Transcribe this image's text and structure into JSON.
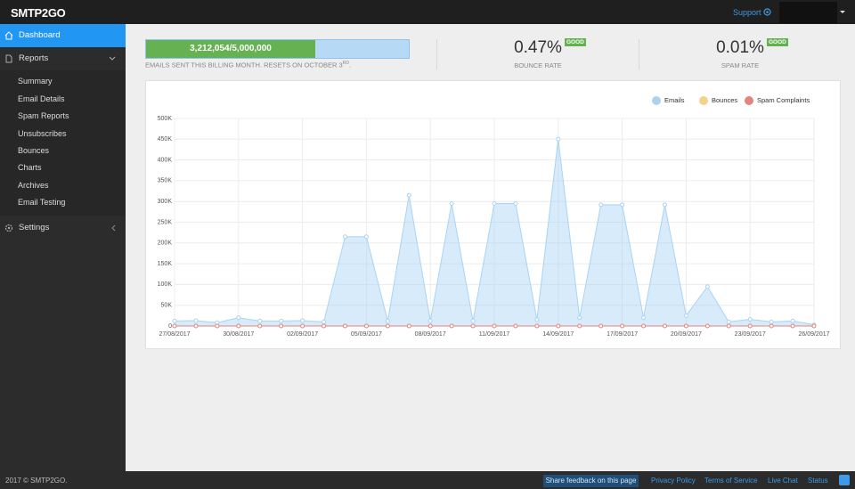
{
  "header": {
    "logo": "SMTP2GO",
    "support": "Support"
  },
  "sidebar": {
    "dashboard": "Dashboard",
    "reports": "Reports",
    "submenu": [
      "Summary",
      "Email Details",
      "Spam Reports",
      "Unsubscribes",
      "Bounces",
      "Charts",
      "Archives",
      "Email Testing"
    ],
    "settings": "Settings"
  },
  "usage": {
    "sent": 3212054,
    "limit": 5000000,
    "label": "3,212,054/5,000,000",
    "note": "EMAILS SENT THIS BILLING MONTH. RESETS ON OCTOBER 3",
    "note_sup": "RD",
    "note_end": "."
  },
  "stats": [
    {
      "value": "0.47%",
      "badge": "GOOD",
      "label": "BOUNCE RATE"
    },
    {
      "value": "0.01%",
      "badge": "GOOD",
      "label": "SPAM RATE"
    }
  ],
  "chart_data": {
    "type": "area",
    "categories": [
      "27/08/2017",
      null,
      null,
      "30/08/2017",
      null,
      null,
      "02/09/2017",
      null,
      null,
      "05/09/2017",
      null,
      null,
      "08/09/2017",
      null,
      null,
      "11/09/2017",
      null,
      null,
      "14/09/2017",
      null,
      null,
      "17/09/2017",
      null,
      null,
      "20/09/2017",
      null,
      null,
      "23/09/2017",
      null,
      null,
      "26/09/2017"
    ],
    "series": [
      {
        "name": "Emails",
        "color": "#a9d3f5",
        "values": [
          12000,
          13000,
          8000,
          20000,
          12000,
          12000,
          13000,
          10000,
          215000,
          215000,
          12000,
          315000,
          12000,
          295000,
          12000,
          295000,
          295000,
          15000,
          450000,
          20000,
          292000,
          292000,
          20000,
          292000,
          25000,
          95000,
          10000,
          16000,
          10000,
          12000,
          3000
        ]
      },
      {
        "name": "Bounces",
        "color": "#f3d38b",
        "values": [
          0,
          0,
          0,
          0,
          0,
          0,
          0,
          0,
          0,
          0,
          0,
          0,
          0,
          0,
          0,
          0,
          0,
          0,
          0,
          0,
          0,
          0,
          0,
          0,
          0,
          0,
          0,
          0,
          0,
          0,
          0
        ]
      },
      {
        "name": "Spam Complaints",
        "color": "#e5837d",
        "values": [
          0,
          0,
          0,
          0,
          0,
          0,
          0,
          0,
          0,
          0,
          0,
          0,
          0,
          0,
          0,
          0,
          0,
          0,
          0,
          0,
          0,
          0,
          0,
          0,
          0,
          0,
          0,
          0,
          0,
          0,
          0
        ]
      }
    ],
    "ylim": [
      0,
      500000
    ],
    "yticks": [
      0,
      {
        "value": 50000,
        "label": "50K"
      },
      {
        "value": 100000,
        "label": "100K"
      },
      {
        "value": 150000,
        "label": "150K"
      },
      {
        "value": 200000,
        "label": "200K"
      },
      {
        "value": 250000,
        "label": "250K"
      },
      {
        "value": 300000,
        "label": "300K"
      },
      {
        "value": 350000,
        "label": "350K"
      },
      {
        "value": 400000,
        "label": "400K"
      },
      {
        "value": 450000,
        "label": "450K"
      },
      {
        "value": 500000,
        "label": "500K"
      }
    ],
    "grid": true,
    "legend": "top-right"
  },
  "footer": {
    "copyright": "2017 © SMTP2GO.",
    "feedback": "Share feedback on this page",
    "links": [
      "Privacy Policy",
      "Terms of Service",
      "Live Chat",
      "Status"
    ]
  }
}
